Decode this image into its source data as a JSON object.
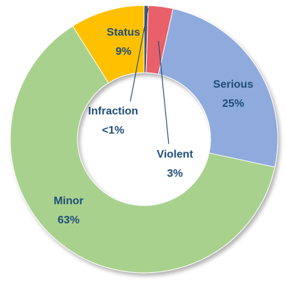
{
  "chart_data": {
    "type": "donut",
    "categories": [
      "Infraction",
      "Violent",
      "Serious",
      "Minor",
      "Status"
    ],
    "values": [
      0.5,
      3,
      25,
      63,
      9
    ],
    "value_labels": [
      "<1%",
      "3%",
      "25%",
      "63%",
      "9%"
    ],
    "colors": [
      "#44546a",
      "#e8606a",
      "#8faadc",
      "#a9d18e",
      "#ffc000"
    ]
  }
}
